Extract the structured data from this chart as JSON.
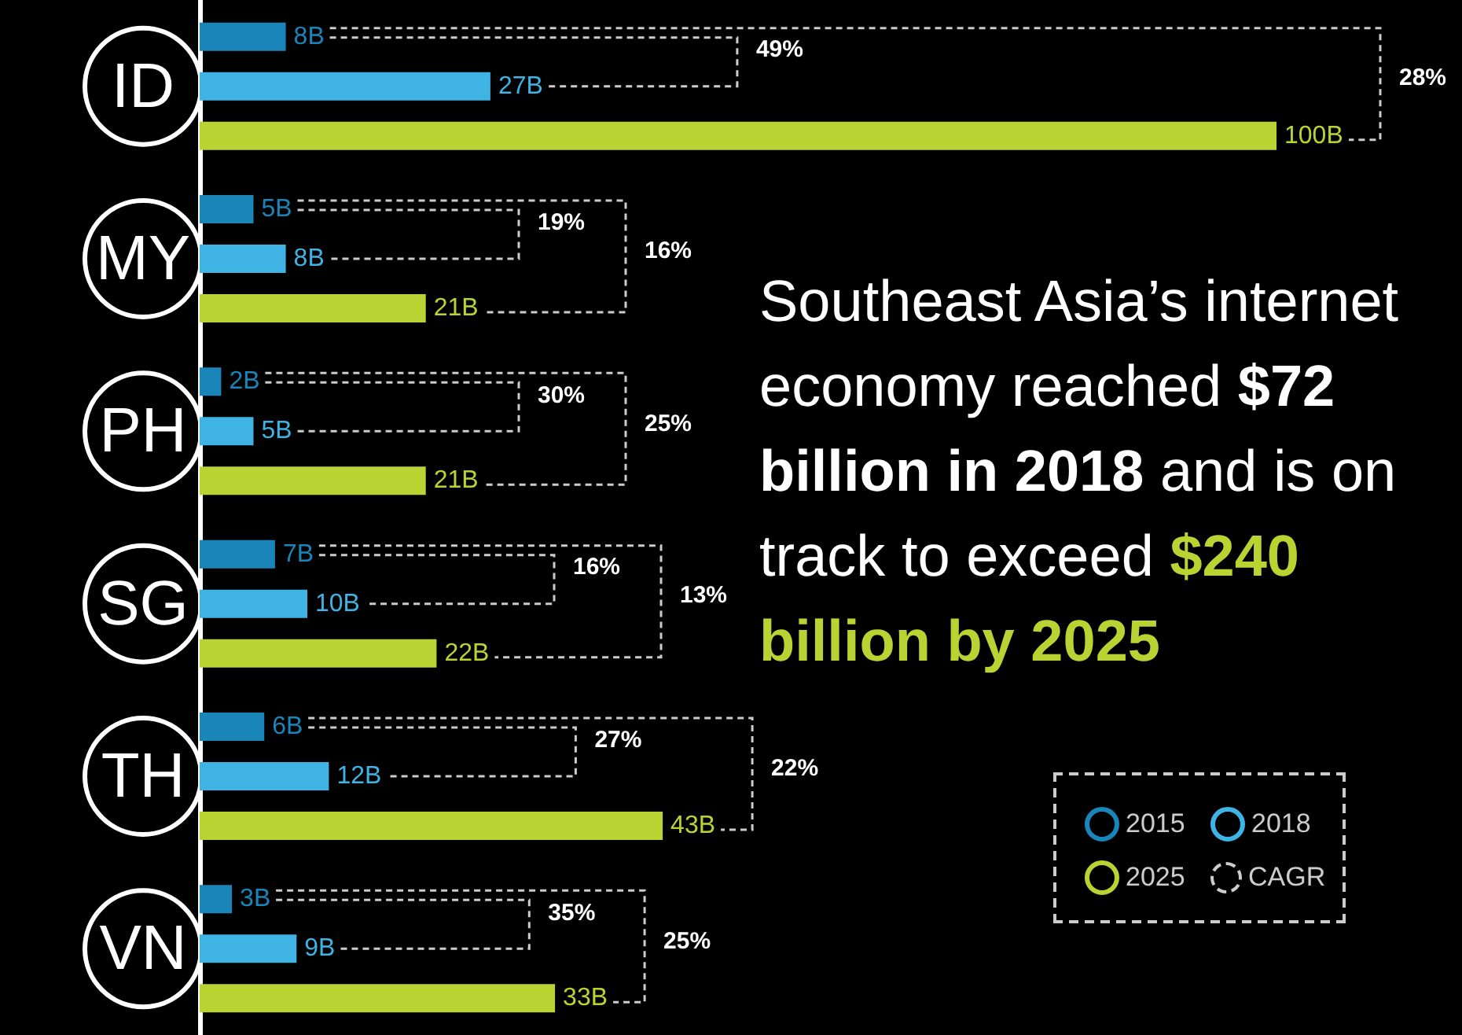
{
  "chart_data": {
    "type": "bar",
    "orientation": "horizontal",
    "categories": [
      "ID",
      "MY",
      "PH",
      "SG",
      "TH",
      "VN"
    ],
    "series": [
      {
        "name": "2015",
        "color": "#1a85b8",
        "values": [
          8,
          5,
          2,
          7,
          6,
          3
        ],
        "value_labels": [
          "8B",
          "5B",
          "2B",
          "7B",
          "6B",
          "3B"
        ]
      },
      {
        "name": "2018",
        "color": "#3fb3e3",
        "values": [
          27,
          8,
          5,
          10,
          12,
          9
        ],
        "value_labels": [
          "27B",
          "8B",
          "5B",
          "10B",
          "12B",
          "9B"
        ]
      },
      {
        "name": "2025",
        "color": "#b9d432",
        "values": [
          100,
          21,
          21,
          22,
          43,
          33
        ],
        "value_labels": [
          "100B",
          "21B",
          "21B",
          "22B",
          "43B",
          "33B"
        ]
      }
    ],
    "legend": "bottom right",
    "annotations": [
      "Southeast Asia’s internet economy reached",
      "$72 billion in 2018",
      "and is on track to exceed",
      "$240 billion by 2025",
      "CAGR",
      "49%",
      "28%",
      "19%",
      "16%",
      "30%",
      "25%",
      "16%",
      "13%",
      "27%",
      "22%",
      "35%",
      "25%"
    ]
  }
}
